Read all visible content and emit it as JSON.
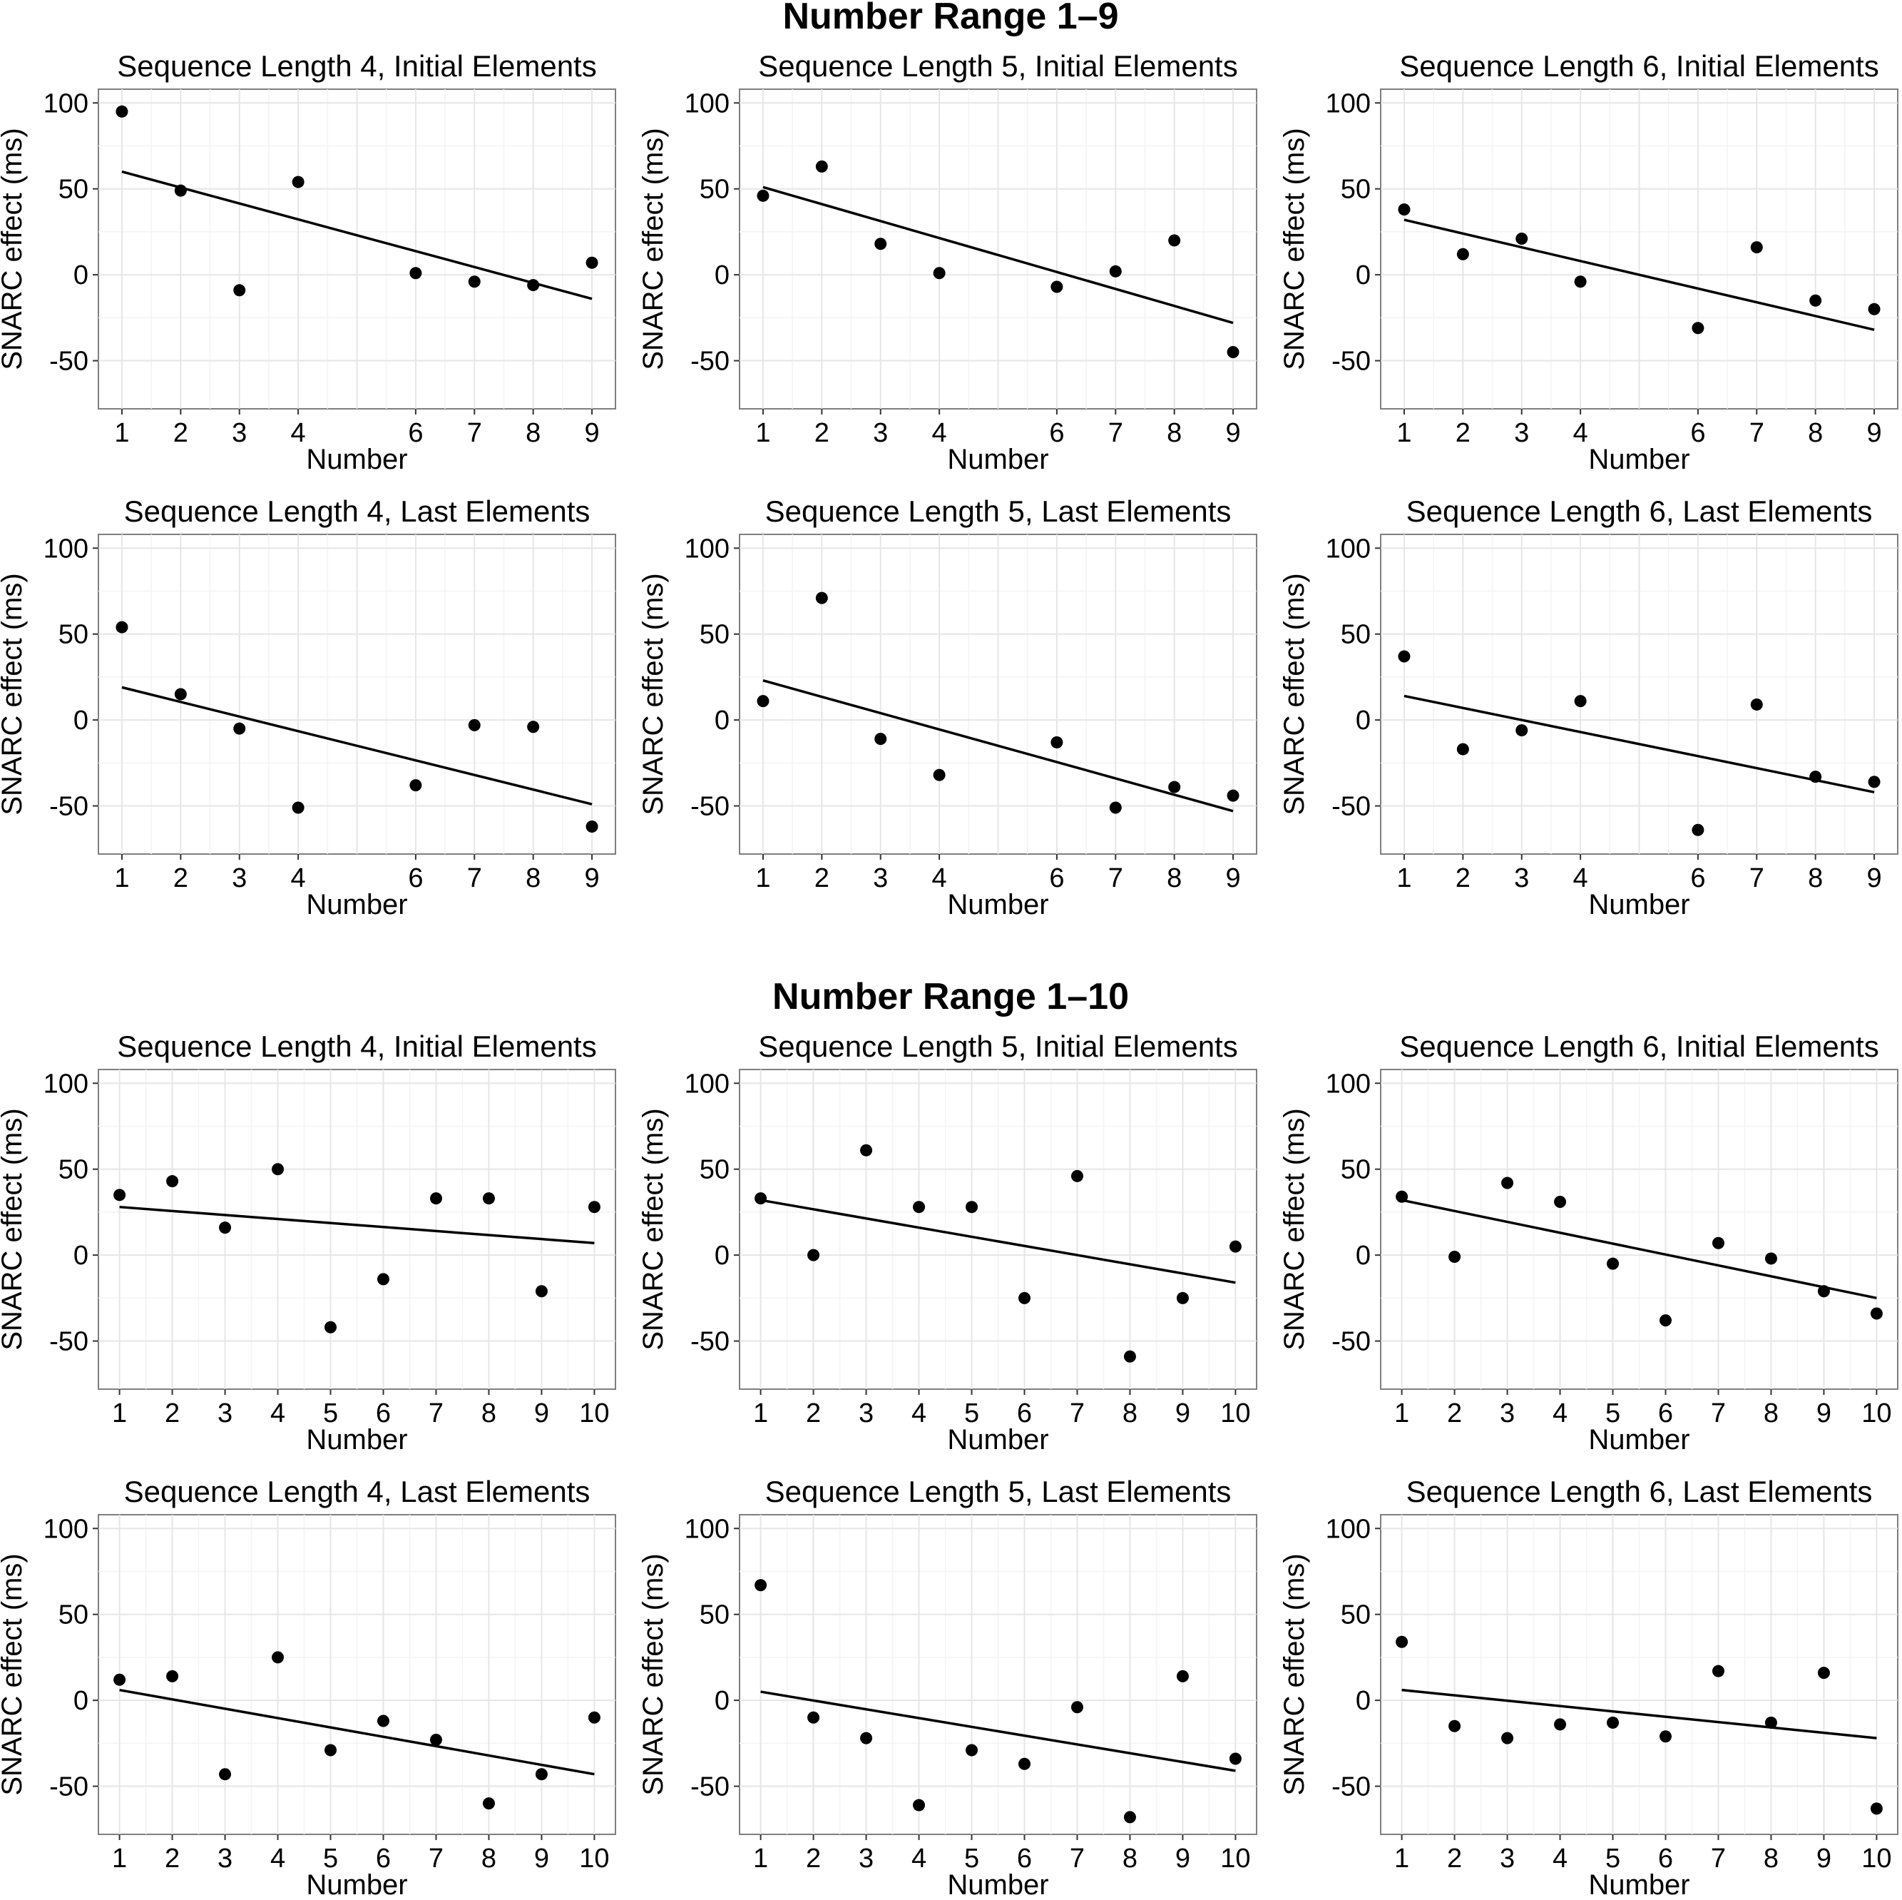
{
  "figure": {
    "sections": [
      {
        "title": "Number Range 1–9"
      },
      {
        "title": "Number Range 1–10"
      }
    ]
  },
  "chart_data": [
    {
      "section": "Number Range 1–9",
      "type": "scatter",
      "title": "Sequence Length 4, Initial Elements",
      "xlabel": "Number",
      "ylabel": "SNARC effect (ms)",
      "ylim": [
        -78,
        108
      ],
      "yticks": [
        -50,
        0,
        50,
        100
      ],
      "x": [
        1,
        2,
        3,
        4,
        6,
        7,
        8,
        9
      ],
      "y": [
        95,
        49,
        -9,
        54,
        1,
        -4,
        -6,
        7
      ],
      "fit": [
        [
          1,
          60
        ],
        [
          9,
          -14
        ]
      ]
    },
    {
      "section": "Number Range 1–9",
      "type": "scatter",
      "title": "Sequence Length 5, Initial Elements",
      "xlabel": "Number",
      "ylabel": "SNARC effect (ms)",
      "ylim": [
        -78,
        108
      ],
      "yticks": [
        -50,
        0,
        50,
        100
      ],
      "x": [
        1,
        2,
        3,
        4,
        6,
        7,
        8,
        9
      ],
      "y": [
        46,
        63,
        18,
        1,
        -7,
        2,
        20,
        -45
      ],
      "fit": [
        [
          1,
          51
        ],
        [
          9,
          -28
        ]
      ]
    },
    {
      "section": "Number Range 1–9",
      "type": "scatter",
      "title": "Sequence Length 6, Initial Elements",
      "xlabel": "Number",
      "ylabel": "SNARC effect (ms)",
      "ylim": [
        -78,
        108
      ],
      "yticks": [
        -50,
        0,
        50,
        100
      ],
      "x": [
        1,
        2,
        3,
        4,
        6,
        7,
        8,
        9
      ],
      "y": [
        38,
        12,
        21,
        -4,
        -31,
        16,
        -15,
        -20
      ],
      "fit": [
        [
          1,
          32
        ],
        [
          9,
          -32
        ]
      ]
    },
    {
      "section": "Number Range 1–9",
      "type": "scatter",
      "title": "Sequence Length 4, Last Elements",
      "xlabel": "Number",
      "ylabel": "SNARC effect (ms)",
      "ylim": [
        -78,
        108
      ],
      "yticks": [
        -50,
        0,
        50,
        100
      ],
      "x": [
        1,
        2,
        3,
        4,
        6,
        7,
        8,
        9
      ],
      "y": [
        54,
        15,
        -5,
        -51,
        -38,
        -3,
        -4,
        -62
      ],
      "fit": [
        [
          1,
          19
        ],
        [
          9,
          -49
        ]
      ]
    },
    {
      "section": "Number Range 1–9",
      "type": "scatter",
      "title": "Sequence Length 5, Last Elements",
      "xlabel": "Number",
      "ylabel": "SNARC effect (ms)",
      "ylim": [
        -78,
        108
      ],
      "yticks": [
        -50,
        0,
        50,
        100
      ],
      "x": [
        1,
        2,
        3,
        4,
        6,
        7,
        8,
        9
      ],
      "y": [
        11,
        71,
        -11,
        -32,
        -13,
        -51,
        -39,
        -44
      ],
      "fit": [
        [
          1,
          23
        ],
        [
          9,
          -53
        ]
      ]
    },
    {
      "section": "Number Range 1–9",
      "type": "scatter",
      "title": "Sequence Length 6, Last Elements",
      "xlabel": "Number",
      "ylabel": "SNARC effect (ms)",
      "ylim": [
        -78,
        108
      ],
      "yticks": [
        -50,
        0,
        50,
        100
      ],
      "x": [
        1,
        2,
        3,
        4,
        6,
        7,
        8,
        9
      ],
      "y": [
        37,
        -17,
        -6,
        11,
        -64,
        9,
        -33,
        -36
      ],
      "fit": [
        [
          1,
          14
        ],
        [
          9,
          -42
        ]
      ]
    },
    {
      "section": "Number Range 1–10",
      "type": "scatter",
      "title": "Sequence Length 4, Initial Elements",
      "xlabel": "Number",
      "ylabel": "SNARC effect (ms)",
      "ylim": [
        -78,
        108
      ],
      "yticks": [
        -50,
        0,
        50,
        100
      ],
      "x": [
        1,
        2,
        3,
        4,
        5,
        6,
        7,
        8,
        9,
        10
      ],
      "y": [
        35,
        43,
        16,
        50,
        -42,
        -14,
        33,
        33,
        -21,
        28
      ],
      "fit": [
        [
          1,
          28
        ],
        [
          10,
          7
        ]
      ]
    },
    {
      "section": "Number Range 1–10",
      "type": "scatter",
      "title": "Sequence Length 5, Initial Elements",
      "xlabel": "Number",
      "ylabel": "SNARC effect (ms)",
      "ylim": [
        -78,
        108
      ],
      "yticks": [
        -50,
        0,
        50,
        100
      ],
      "x": [
        1,
        2,
        3,
        4,
        5,
        6,
        7,
        8,
        9,
        10
      ],
      "y": [
        33,
        0,
        61,
        28,
        28,
        -25,
        46,
        -59,
        -25,
        5
      ],
      "fit": [
        [
          1,
          32
        ],
        [
          10,
          -16
        ]
      ]
    },
    {
      "section": "Number Range 1–10",
      "type": "scatter",
      "title": "Sequence Length 6, Initial Elements",
      "xlabel": "Number",
      "ylabel": "SNARC effect (ms)",
      "ylim": [
        -78,
        108
      ],
      "yticks": [
        -50,
        0,
        50,
        100
      ],
      "x": [
        1,
        2,
        3,
        4,
        5,
        6,
        7,
        8,
        9,
        10
      ],
      "y": [
        34,
        -1,
        42,
        31,
        -5,
        -38,
        7,
        -2,
        -21,
        -34
      ],
      "fit": [
        [
          1,
          32
        ],
        [
          10,
          -25
        ]
      ]
    },
    {
      "section": "Number Range 1–10",
      "type": "scatter",
      "title": "Sequence Length 4, Last Elements",
      "xlabel": "Number",
      "ylabel": "SNARC effect (ms)",
      "ylim": [
        -78,
        108
      ],
      "yticks": [
        -50,
        0,
        50,
        100
      ],
      "x": [
        1,
        2,
        3,
        4,
        5,
        6,
        7,
        8,
        9,
        10
      ],
      "y": [
        12,
        14,
        -43,
        25,
        -29,
        -12,
        -23,
        -60,
        -43,
        -10
      ],
      "fit": [
        [
          1,
          6
        ],
        [
          10,
          -43
        ]
      ]
    },
    {
      "section": "Number Range 1–10",
      "type": "scatter",
      "title": "Sequence Length 5, Last Elements",
      "xlabel": "Number",
      "ylabel": "SNARC effect (ms)",
      "ylim": [
        -78,
        108
      ],
      "yticks": [
        -50,
        0,
        50,
        100
      ],
      "x": [
        1,
        2,
        3,
        4,
        5,
        6,
        7,
        8,
        9,
        10
      ],
      "y": [
        67,
        -10,
        -22,
        -61,
        -29,
        -37,
        -4,
        -68,
        14,
        -34
      ],
      "fit": [
        [
          1,
          5
        ],
        [
          10,
          -41
        ]
      ]
    },
    {
      "section": "Number Range 1–10",
      "type": "scatter",
      "title": "Sequence Length 6, Last Elements",
      "xlabel": "Number",
      "ylabel": "SNARC effect (ms)",
      "ylim": [
        -78,
        108
      ],
      "yticks": [
        -50,
        0,
        50,
        100
      ],
      "x": [
        1,
        2,
        3,
        4,
        5,
        6,
        7,
        8,
        9,
        10
      ],
      "y": [
        34,
        -15,
        -22,
        -14,
        -13,
        -21,
        17,
        -13,
        16,
        -63
      ],
      "fit": [
        [
          1,
          6
        ],
        [
          10,
          -22
        ]
      ]
    }
  ]
}
